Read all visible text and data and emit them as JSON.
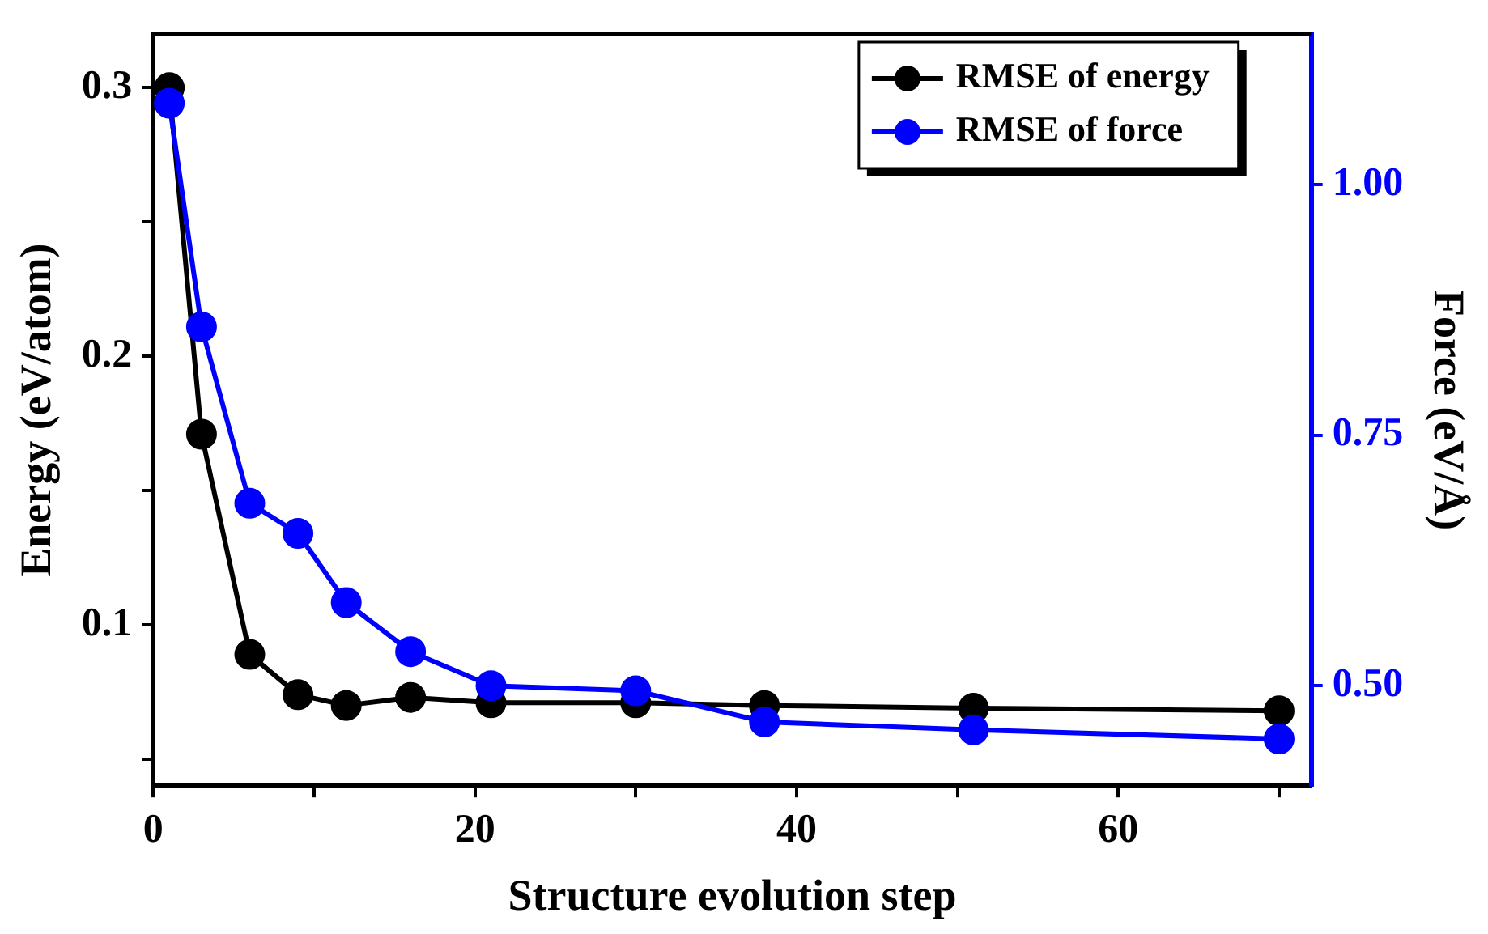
{
  "chart_data": {
    "type": "line",
    "xlabel": "Structure evolution step",
    "ylabel": "Energy (eV/atom)",
    "y2label": "Force (eV/Å)",
    "x": [
      1,
      3,
      6,
      9,
      12,
      16,
      21,
      30,
      38,
      51,
      70
    ],
    "series": [
      {
        "name": "RMSE of energy",
        "color": "#000000",
        "values": [
          0.3,
          0.171,
          0.089,
          0.074,
          0.07,
          0.073,
          0.071,
          0.071,
          0.07,
          0.069,
          0.068
        ]
      },
      {
        "name": "RMSE of force",
        "color": "#0000ff",
        "axis": "y2",
        "values": [
          1.081,
          0.858,
          0.682,
          0.652,
          0.583,
          0.534,
          0.5,
          0.495,
          0.464,
          0.456,
          0.447
        ]
      }
    ],
    "xlim": [
      0,
      72
    ],
    "xticks": [
      0,
      {
        "value": 10,
        "label": null
      },
      20,
      {
        "value": 30,
        "label": null
      },
      40,
      {
        "value": 50,
        "label": null
      },
      60,
      {
        "value": 70,
        "label": null
      }
    ],
    "ylim": [
      0.04,
      0.32
    ],
    "yticks": [
      {
        "value": 0.05,
        "label": null
      },
      0.1,
      {
        "value": 0.15,
        "label": null
      },
      0.2,
      {
        "value": 0.25,
        "label": null
      },
      0.3
    ],
    "y2lim": [
      0.4,
      1.15
    ],
    "y2ticks": [
      {
        "value": 0.5,
        "label": "0.50"
      },
      {
        "value": 0.75,
        "label": "0.75"
      },
      {
        "value": 1.0,
        "label": "1.00"
      }
    ],
    "grid": false,
    "legend": "top right",
    "marker": "circle",
    "line_style": "solid"
  }
}
